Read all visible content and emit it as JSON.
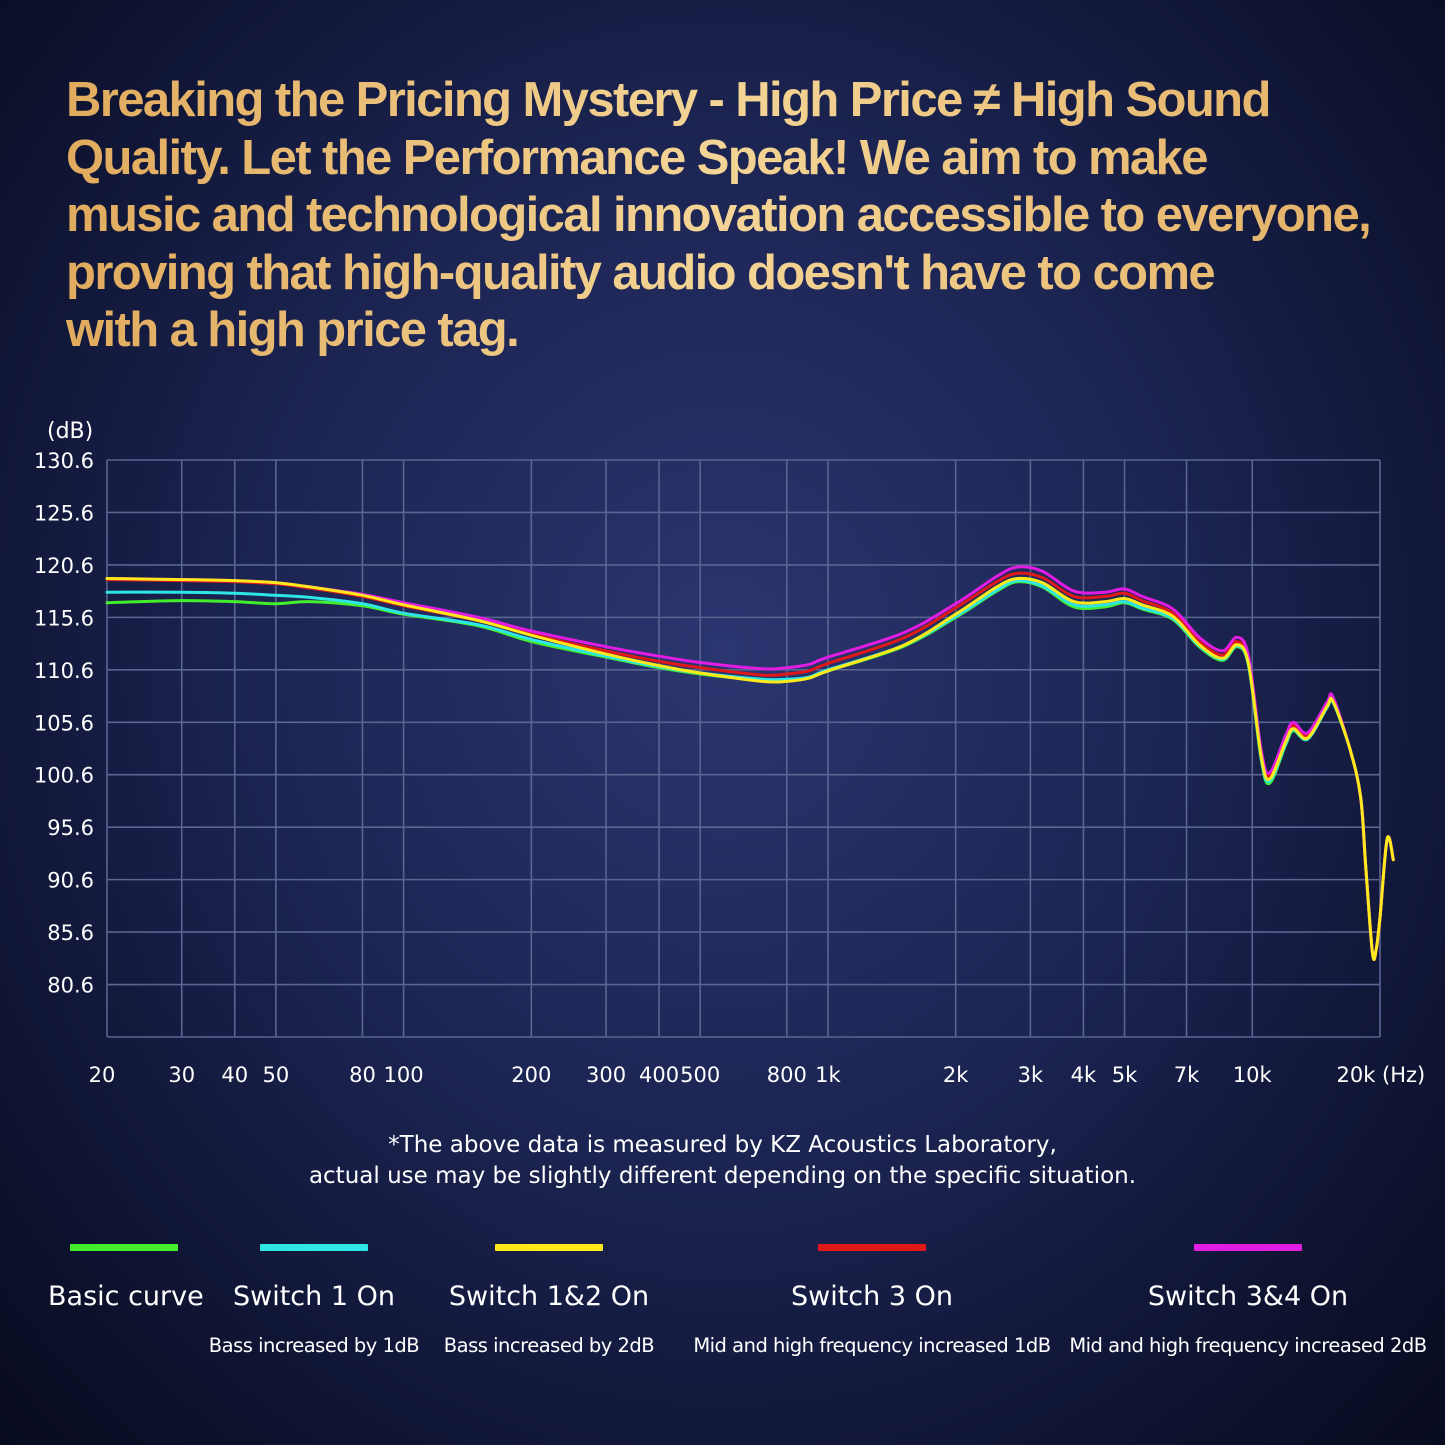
{
  "headline": [
    "Breaking the Pricing Mystery - High Price ≠ High Sound",
    "Quality. Let the Performance Speak! We aim to make",
    "music and technological innovation accessible to everyone,",
    " proving that high-quality audio doesn't have to come",
    "with a high price tag."
  ],
  "footnote": {
    "line1": "*The above data is measured by KZ Acoustics Laboratory,",
    "line2": "actual use may be slightly different depending on the specific situation."
  },
  "legend": [
    {
      "name": "Basic curve",
      "desc": "",
      "color": "#43ef2d"
    },
    {
      "name": "Switch 1 On",
      "desc": "Bass increased by 1dB",
      "color": "#2ee6e6"
    },
    {
      "name": "Switch 1&2 On",
      "desc": "Bass increased by 2dB",
      "color": "#ffe91a"
    },
    {
      "name": "Switch 3 On",
      "desc": "Mid and high frequency increased 1dB",
      "color": "#e01818"
    },
    {
      "name": "Switch 3&4 On",
      "desc": "Mid and high frequency increased 2dB",
      "color": "#e11de3"
    }
  ],
  "chart_data": {
    "type": "line",
    "title": "",
    "xlabel": "(Hz)",
    "ylabel": "(dB)",
    "x_scale": "log",
    "xlim": [
      20,
      20000
    ],
    "ylim": [
      75.6,
      130.6
    ],
    "grid": true,
    "legend_position": "bottom",
    "y_ticks": [
      "130.6",
      "125.6",
      "120.6",
      "115.6",
      "110.6",
      "105.6",
      "100.6",
      "95.6",
      "90.6",
      "85.6",
      "80.6"
    ],
    "x_ticks": [
      {
        "v": 20,
        "label": "20"
      },
      {
        "v": 30,
        "label": "30"
      },
      {
        "v": 40,
        "label": "40"
      },
      {
        "v": 50,
        "label": "50"
      },
      {
        "v": 80,
        "label": "80"
      },
      {
        "v": 100,
        "label": "100"
      },
      {
        "v": 200,
        "label": "200"
      },
      {
        "v": 300,
        "label": "300"
      },
      {
        "v": 400,
        "label": "400"
      },
      {
        "v": 500,
        "label": "500"
      },
      {
        "v": 800,
        "label": "800"
      },
      {
        "v": 1000,
        "label": "1k"
      },
      {
        "v": 2000,
        "label": "2k"
      },
      {
        "v": 3000,
        "label": "3k"
      },
      {
        "v": 4000,
        "label": "4k"
      },
      {
        "v": 5000,
        "label": "5k"
      },
      {
        "v": 7000,
        "label": "7k"
      },
      {
        "v": 10000,
        "label": "10k"
      },
      {
        "v": 20000,
        "label": "20k"
      }
    ],
    "series": [
      {
        "name": "Basic curve",
        "color": "#43ef2d",
        "points": [
          [
            20,
            117.0
          ],
          [
            30,
            117.2
          ],
          [
            40,
            117.1
          ],
          [
            50,
            116.9
          ],
          [
            60,
            117.1
          ],
          [
            80,
            116.7
          ],
          [
            100,
            115.9
          ],
          [
            150,
            114.8
          ],
          [
            200,
            113.3
          ],
          [
            300,
            111.8
          ],
          [
            400,
            110.8
          ],
          [
            500,
            110.2
          ],
          [
            700,
            109.6
          ],
          [
            800,
            109.6
          ],
          [
            900,
            109.8
          ],
          [
            1000,
            110.5
          ],
          [
            1500,
            112.8
          ],
          [
            2000,
            115.6
          ],
          [
            2500,
            118.1
          ],
          [
            2800,
            119.0
          ],
          [
            3200,
            118.5
          ],
          [
            3800,
            116.6
          ],
          [
            4500,
            116.6
          ],
          [
            5000,
            117.0
          ],
          [
            5500,
            116.4
          ],
          [
            6500,
            115.4
          ],
          [
            7500,
            112.8
          ],
          [
            8500,
            111.5
          ],
          [
            9200,
            112.8
          ],
          [
            9800,
            111.0
          ],
          [
            10500,
            102.0
          ],
          [
            11000,
            99.8
          ],
          [
            12000,
            103.5
          ],
          [
            12500,
            104.8
          ],
          [
            13500,
            104.0
          ],
          [
            15000,
            107.0
          ],
          [
            15500,
            107.5
          ],
          [
            17000,
            103.0
          ],
          [
            18000,
            98.5
          ],
          [
            18500,
            92.0
          ],
          [
            19200,
            83.6
          ],
          [
            19600,
            84.0
          ],
          [
            20000,
            87.0
          ],
          [
            20800,
            94.5
          ],
          [
            21500,
            92.5
          ]
        ]
      },
      {
        "name": "Switch 1 On",
        "color": "#2ee6e6",
        "points": [
          [
            20,
            118.0
          ],
          [
            30,
            118.0
          ],
          [
            40,
            117.9
          ],
          [
            50,
            117.7
          ],
          [
            60,
            117.5
          ],
          [
            80,
            116.9
          ],
          [
            100,
            116.0
          ],
          [
            150,
            114.9
          ],
          [
            200,
            113.5
          ],
          [
            300,
            111.9
          ],
          [
            400,
            110.9
          ],
          [
            500,
            110.3
          ],
          [
            700,
            109.7
          ],
          [
            800,
            109.7
          ],
          [
            900,
            109.9
          ],
          [
            1000,
            110.6
          ],
          [
            1500,
            112.9
          ],
          [
            2000,
            115.7
          ],
          [
            2500,
            118.2
          ],
          [
            2800,
            119.1
          ],
          [
            3200,
            118.6
          ],
          [
            3800,
            116.8
          ],
          [
            4500,
            116.8
          ],
          [
            5000,
            117.1
          ],
          [
            5500,
            116.5
          ],
          [
            6500,
            115.5
          ],
          [
            7500,
            112.9
          ],
          [
            8500,
            111.6
          ],
          [
            9200,
            112.9
          ],
          [
            9800,
            111.1
          ],
          [
            10500,
            102.1
          ],
          [
            11000,
            100.0
          ],
          [
            12000,
            103.6
          ],
          [
            12500,
            104.9
          ],
          [
            13500,
            104.0
          ],
          [
            15000,
            107.0
          ],
          [
            15500,
            107.5
          ],
          [
            17000,
            103.0
          ],
          [
            18000,
            98.5
          ],
          [
            18500,
            92.0
          ],
          [
            19200,
            83.6
          ],
          [
            19600,
            84.0
          ],
          [
            20000,
            87.0
          ],
          [
            20800,
            94.5
          ],
          [
            21500,
            92.5
          ]
        ]
      },
      {
        "name": "Switch 1&2 On",
        "color": "#ffe91a",
        "points": [
          [
            20,
            119.3
          ],
          [
            30,
            119.2
          ],
          [
            40,
            119.1
          ],
          [
            50,
            118.9
          ],
          [
            60,
            118.5
          ],
          [
            80,
            117.7
          ],
          [
            100,
            116.8
          ],
          [
            150,
            115.3
          ],
          [
            200,
            113.9
          ],
          [
            300,
            112.1
          ],
          [
            400,
            111.0
          ],
          [
            500,
            110.3
          ],
          [
            700,
            109.5
          ],
          [
            800,
            109.5
          ],
          [
            900,
            109.8
          ],
          [
            1000,
            110.5
          ],
          [
            1500,
            112.9
          ],
          [
            2000,
            115.9
          ],
          [
            2500,
            118.5
          ],
          [
            2800,
            119.3
          ],
          [
            3200,
            118.9
          ],
          [
            3800,
            117.1
          ],
          [
            4500,
            117.1
          ],
          [
            5000,
            117.4
          ],
          [
            5500,
            116.8
          ],
          [
            6500,
            115.7
          ],
          [
            7500,
            113.0
          ],
          [
            8500,
            111.7
          ],
          [
            9200,
            113.0
          ],
          [
            9800,
            111.2
          ],
          [
            10500,
            102.3
          ],
          [
            11000,
            100.2
          ],
          [
            12000,
            103.8
          ],
          [
            12500,
            105.0
          ],
          [
            13500,
            104.1
          ],
          [
            15000,
            107.1
          ],
          [
            15500,
            107.6
          ],
          [
            17000,
            103.0
          ],
          [
            18000,
            98.5
          ],
          [
            18500,
            92.0
          ],
          [
            19200,
            83.6
          ],
          [
            19600,
            84.0
          ],
          [
            20000,
            87.0
          ],
          [
            20800,
            94.5
          ],
          [
            21500,
            92.5
          ]
        ]
      },
      {
        "name": "Switch 3 On",
        "color": "#e01818",
        "points": [
          [
            20,
            119.2
          ],
          [
            30,
            119.1
          ],
          [
            40,
            119.0
          ],
          [
            50,
            118.8
          ],
          [
            60,
            118.4
          ],
          [
            80,
            117.6
          ],
          [
            100,
            116.7
          ],
          [
            150,
            115.3
          ],
          [
            200,
            114.0
          ],
          [
            300,
            112.4
          ],
          [
            400,
            111.4
          ],
          [
            500,
            110.8
          ],
          [
            700,
            110.1
          ],
          [
            800,
            110.2
          ],
          [
            900,
            110.5
          ],
          [
            1000,
            111.2
          ],
          [
            1500,
            113.6
          ],
          [
            2000,
            116.5
          ],
          [
            2500,
            119.0
          ],
          [
            2800,
            119.8
          ],
          [
            3200,
            119.4
          ],
          [
            3800,
            117.6
          ],
          [
            4500,
            117.6
          ],
          [
            5000,
            117.9
          ],
          [
            5500,
            117.2
          ],
          [
            6500,
            116.0
          ],
          [
            7500,
            113.3
          ],
          [
            8500,
            112.0
          ],
          [
            9200,
            113.3
          ],
          [
            9800,
            111.5
          ],
          [
            10500,
            102.6
          ],
          [
            11000,
            100.5
          ],
          [
            12000,
            104.1
          ],
          [
            12500,
            105.3
          ],
          [
            13500,
            104.3
          ],
          [
            15000,
            107.3
          ],
          [
            15500,
            107.8
          ],
          [
            17000,
            103.0
          ],
          [
            18000,
            98.5
          ],
          [
            18500,
            92.0
          ],
          [
            19200,
            83.6
          ],
          [
            19600,
            84.0
          ],
          [
            20000,
            87.0
          ],
          [
            20800,
            94.5
          ],
          [
            21500,
            92.5
          ]
        ]
      },
      {
        "name": "Switch 3&4 On",
        "color": "#e11de3",
        "points": [
          [
            20,
            119.3
          ],
          [
            30,
            119.2
          ],
          [
            40,
            119.1
          ],
          [
            50,
            118.9
          ],
          [
            60,
            118.5
          ],
          [
            80,
            117.8
          ],
          [
            100,
            117.0
          ],
          [
            150,
            115.6
          ],
          [
            200,
            114.3
          ],
          [
            300,
            112.8
          ],
          [
            400,
            111.9
          ],
          [
            500,
            111.3
          ],
          [
            700,
            110.7
          ],
          [
            800,
            110.8
          ],
          [
            900,
            111.1
          ],
          [
            1000,
            111.8
          ],
          [
            1500,
            114.1
          ],
          [
            2000,
            116.9
          ],
          [
            2500,
            119.5
          ],
          [
            2800,
            120.4
          ],
          [
            3200,
            120.0
          ],
          [
            3800,
            118.1
          ],
          [
            4500,
            118.0
          ],
          [
            5000,
            118.3
          ],
          [
            5500,
            117.6
          ],
          [
            6500,
            116.4
          ],
          [
            7500,
            113.7
          ],
          [
            8500,
            112.4
          ],
          [
            9200,
            113.7
          ],
          [
            9800,
            111.9
          ],
          [
            10500,
            102.9
          ],
          [
            11000,
            100.8
          ],
          [
            12000,
            104.4
          ],
          [
            12500,
            105.6
          ],
          [
            13500,
            104.6
          ],
          [
            15000,
            107.5
          ],
          [
            15500,
            108.0
          ],
          [
            17000,
            103.0
          ],
          [
            18000,
            98.5
          ],
          [
            18500,
            92.0
          ],
          [
            19200,
            83.6
          ],
          [
            19600,
            84.0
          ],
          [
            20000,
            87.0
          ],
          [
            20800,
            94.5
          ],
          [
            21500,
            92.5
          ]
        ]
      }
    ]
  }
}
